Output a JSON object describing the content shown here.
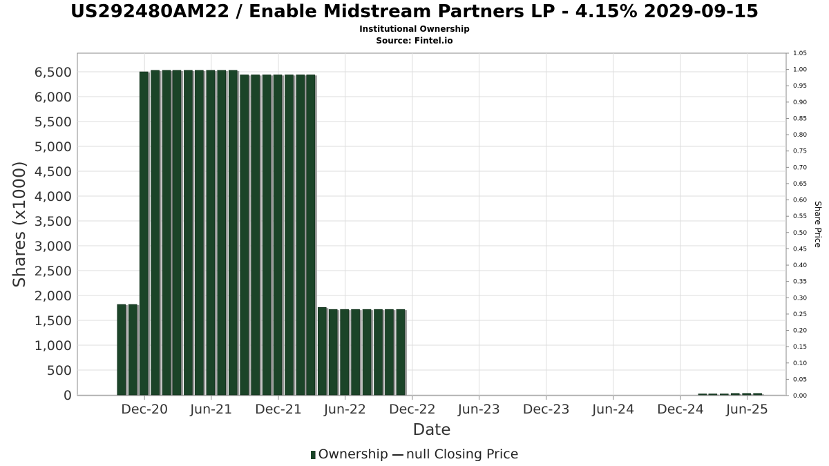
{
  "title": "US292480AM22 / Enable Midstream Partners LP - 4.15% 2029-09-15",
  "subtitle1": "Institutional Ownership",
  "subtitle2": "Source: Fintel.io",
  "legend": {
    "ownership": "Ownership",
    "price": "null Closing Price"
  },
  "colors": {
    "bar": "#1b4428",
    "bar_shadow": "#9a9a9a",
    "grid": "#dddddd"
  },
  "chart_data": {
    "type": "bar",
    "xlabel": "Date",
    "ylabel": "Shares (x1000)",
    "y2label": "Share Price",
    "ylim": [
      0,
      6800
    ],
    "y2lim": [
      0,
      1.05
    ],
    "yticks": [
      0,
      500,
      1000,
      1500,
      2000,
      2500,
      3000,
      3500,
      4000,
      4500,
      5000,
      5500,
      6000,
      6500
    ],
    "ytick_labels": [
      "0",
      "500",
      "1,000",
      "1,500",
      "2,000",
      "2,500",
      "3,000",
      "3,500",
      "4,000",
      "4,500",
      "5,000",
      "5,500",
      "6,000",
      "6,500"
    ],
    "y2ticks": [
      "0.00",
      "0.05",
      "0.10",
      "0.15",
      "0.20",
      "0.25",
      "0.30",
      "0.35",
      "0.40",
      "0.45",
      "0.50",
      "0.55",
      "0.60",
      "0.65",
      "0.70",
      "0.75",
      "0.80",
      "0.85",
      "0.90",
      "0.95",
      "1.00",
      "1.05"
    ],
    "xlim": [
      "2020-06-01",
      "2025-09-15"
    ],
    "xticks": [
      {
        "date": "2020-12-01",
        "label": "Dec-20"
      },
      {
        "date": "2021-06-01",
        "label": "Jun-21"
      },
      {
        "date": "2021-12-01",
        "label": "Dec-21"
      },
      {
        "date": "2022-06-01",
        "label": "Jun-22"
      },
      {
        "date": "2022-12-01",
        "label": "Dec-22"
      },
      {
        "date": "2023-06-01",
        "label": "Jun-23"
      },
      {
        "date": "2023-12-01",
        "label": "Dec-23"
      },
      {
        "date": "2024-06-01",
        "label": "Jun-24"
      },
      {
        "date": "2024-12-01",
        "label": "Dec-24"
      },
      {
        "date": "2025-06-01",
        "label": "Jun-25"
      }
    ],
    "grid": true,
    "legend_position": "bottom",
    "series": [
      {
        "name": "Ownership",
        "points": [
          {
            "x": "2020-09-30",
            "y": 1820
          },
          {
            "x": "2020-10-31",
            "y": 1820
          },
          {
            "x": "2020-11-30",
            "y": 6500
          },
          {
            "x": "2020-12-31",
            "y": 6530
          },
          {
            "x": "2021-01-31",
            "y": 6530
          },
          {
            "x": "2021-02-28",
            "y": 6530
          },
          {
            "x": "2021-03-31",
            "y": 6530
          },
          {
            "x": "2021-04-30",
            "y": 6530
          },
          {
            "x": "2021-05-31",
            "y": 6530
          },
          {
            "x": "2021-06-30",
            "y": 6530
          },
          {
            "x": "2021-07-31",
            "y": 6530
          },
          {
            "x": "2021-08-31",
            "y": 6440
          },
          {
            "x": "2021-09-30",
            "y": 6440
          },
          {
            "x": "2021-10-31",
            "y": 6440
          },
          {
            "x": "2021-11-30",
            "y": 6440
          },
          {
            "x": "2021-12-31",
            "y": 6440
          },
          {
            "x": "2022-01-31",
            "y": 6440
          },
          {
            "x": "2022-02-28",
            "y": 6440
          },
          {
            "x": "2022-03-31",
            "y": 1760
          },
          {
            "x": "2022-04-30",
            "y": 1720
          },
          {
            "x": "2022-05-31",
            "y": 1720
          },
          {
            "x": "2022-06-30",
            "y": 1720
          },
          {
            "x": "2022-07-31",
            "y": 1720
          },
          {
            "x": "2022-08-31",
            "y": 1720
          },
          {
            "x": "2022-09-30",
            "y": 1720
          },
          {
            "x": "2022-10-31",
            "y": 1720
          },
          {
            "x": "2025-01-31",
            "y": 10
          },
          {
            "x": "2025-02-28",
            "y": 10
          },
          {
            "x": "2025-03-31",
            "y": 10
          },
          {
            "x": "2025-04-30",
            "y": 30
          },
          {
            "x": "2025-05-31",
            "y": 30
          },
          {
            "x": "2025-06-30",
            "y": 30
          }
        ]
      }
    ]
  }
}
